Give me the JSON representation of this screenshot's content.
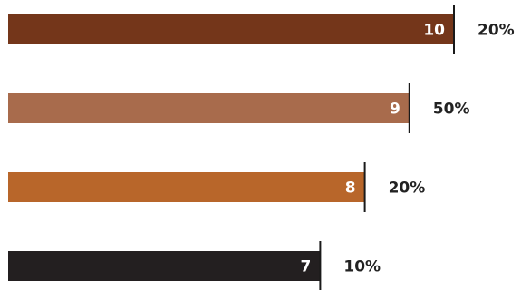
{
  "chart_data": {
    "type": "bar",
    "orientation": "horizontal",
    "categories": [
      "10",
      "9",
      "8",
      "7"
    ],
    "values": [
      10,
      9,
      8,
      7
    ],
    "percent_labels": [
      "20%",
      "50%",
      "20%",
      "10%"
    ],
    "bar_colors": [
      "#74361a",
      "#a86b4c",
      "#b8662a",
      "#231f20"
    ],
    "title": "",
    "xlabel": "",
    "ylabel": "",
    "xlim": [
      0,
      10
    ],
    "grid": false,
    "legend": "none"
  }
}
